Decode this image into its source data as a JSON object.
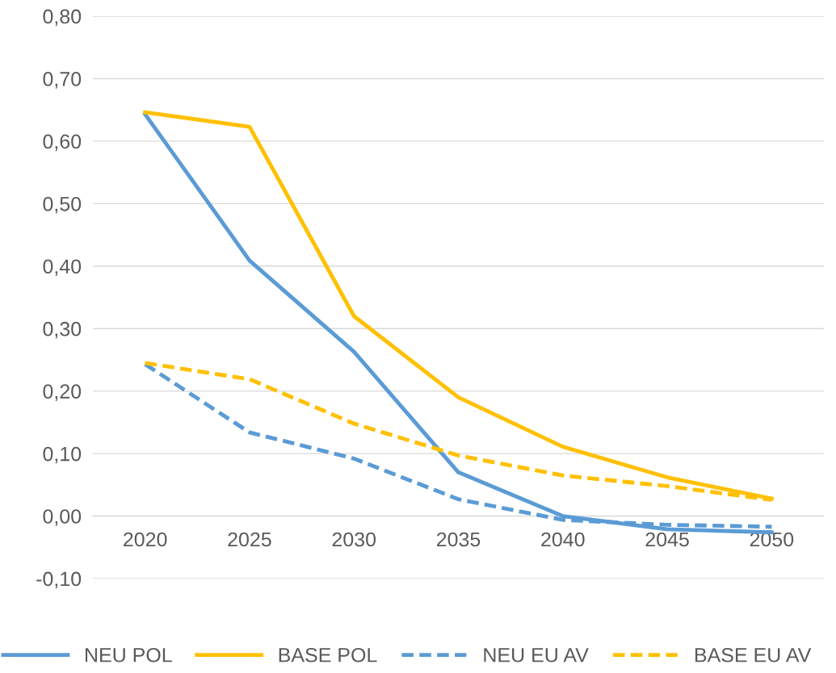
{
  "chart_data": {
    "type": "line",
    "categories": [
      "2020",
      "2025",
      "2030",
      "2035",
      "2040",
      "2045",
      "2050"
    ],
    "series": [
      {
        "name": "NEU POL",
        "color": "#5b9bd5",
        "line_style": "solid",
        "values": [
          0.643,
          0.409,
          0.263,
          0.07,
          0.0,
          -0.021,
          -0.026
        ]
      },
      {
        "name": "BASE POL",
        "color": "#ffc000",
        "line_style": "solid",
        "values": [
          0.646,
          0.623,
          0.32,
          0.19,
          0.111,
          0.062,
          0.028
        ]
      },
      {
        "name": "NEU EU AV",
        "color": "#5b9bd5",
        "line_style": "dashed",
        "values": [
          0.243,
          0.134,
          0.092,
          0.027,
          -0.006,
          -0.014,
          -0.017
        ]
      },
      {
        "name": "BASE EU AV",
        "color": "#ffc000",
        "line_style": "dashed",
        "values": [
          0.245,
          0.219,
          0.148,
          0.097,
          0.065,
          0.048,
          0.026
        ]
      }
    ],
    "ylim": [
      -0.1,
      0.8
    ],
    "yticks": [
      {
        "value": -0.1,
        "label": "-0,10"
      },
      {
        "value": 0.0,
        "label": "0,00"
      },
      {
        "value": 0.1,
        "label": "0,10"
      },
      {
        "value": 0.2,
        "label": "0,20"
      },
      {
        "value": 0.3,
        "label": "0,30"
      },
      {
        "value": 0.4,
        "label": "0,40"
      },
      {
        "value": 0.5,
        "label": "0,50"
      },
      {
        "value": 0.6,
        "label": "0,60"
      },
      {
        "value": 0.7,
        "label": "0,70"
      },
      {
        "value": 0.8,
        "label": "0,80"
      }
    ],
    "grid": "y",
    "legend": "bottom",
    "marker": "none"
  }
}
